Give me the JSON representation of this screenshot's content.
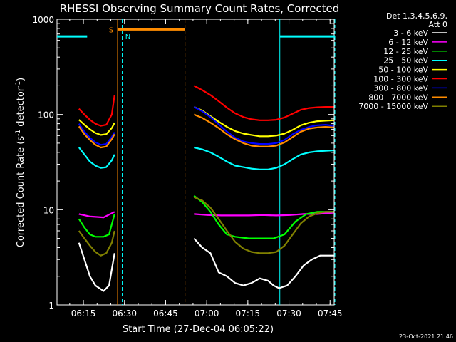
{
  "chart_data": {
    "type": "line",
    "title": "RHESSI Observing Summary Count Rates, Corrected",
    "xlabel": "Start Time (27-Dec-04 06:05:22)",
    "ylabel_main": "Corrected Count Rate (s",
    "ylabel_sup1": "-1",
    "ylabel_mid": " detector",
    "ylabel_sup2": "-1",
    "ylabel_end": ")",
    "yscale": "log",
    "xlim": [
      "06:05:22",
      "07:46:30"
    ],
    "ylim": [
      1,
      1000
    ],
    "x_ticks": [
      "06:15",
      "06:30",
      "06:45",
      "07:00",
      "07:15",
      "07:30",
      "07:45"
    ],
    "x_tick_minutes": [
      15,
      30,
      45,
      60,
      75,
      90,
      105
    ],
    "y_ticks": [
      "1",
      "10",
      "100",
      "1000"
    ],
    "y_tick_values": [
      1,
      10,
      100,
      1000
    ],
    "legend": {
      "header1": "Det 1,3,4,5,6,9,",
      "header2": "Att 0",
      "position": "right"
    },
    "series": [
      {
        "name": "3 - 6 keV",
        "color": "#000000",
        "segments": [
          [
            [
              8,
              4.5
            ],
            [
              10,
              3.0
            ],
            [
              12,
              2.0
            ],
            [
              14,
              1.6
            ],
            [
              17,
              1.4
            ],
            [
              19,
              1.6
            ],
            [
              21,
              3.5
            ]
          ],
          [
            [
              50,
              5
            ],
            [
              53,
              4
            ],
            [
              56,
              3.5
            ],
            [
              59,
              2.2
            ],
            [
              62,
              2.0
            ],
            [
              65,
              1.7
            ],
            [
              68,
              1.6
            ],
            [
              71,
              1.7
            ],
            [
              74,
              1.9
            ],
            [
              77,
              1.8
            ],
            [
              79,
              1.6
            ],
            [
              81,
              1.5
            ],
            [
              84,
              1.6
            ],
            [
              87,
              2.0
            ],
            [
              90,
              2.6
            ],
            [
              93,
              3.0
            ],
            [
              96,
              3.3
            ],
            [
              99,
              3.3
            ],
            [
              101,
              3.3
            ]
          ]
        ]
      },
      {
        "name": "6 - 12 keV",
        "color": "#ff00ff",
        "segments": [
          [
            [
              8,
              9.0
            ],
            [
              12,
              8.5
            ],
            [
              17,
              8.3
            ],
            [
              21,
              9.5
            ]
          ],
          [
            [
              50,
              9.0
            ],
            [
              55,
              8.8
            ],
            [
              60,
              8.7
            ],
            [
              65,
              8.7
            ],
            [
              70,
              8.7
            ],
            [
              75,
              8.8
            ],
            [
              80,
              8.7
            ],
            [
              85,
              8.8
            ],
            [
              90,
              9.0
            ],
            [
              95,
              9.0
            ],
            [
              101,
              9.3
            ]
          ]
        ]
      },
      {
        "name": "12 - 25 keV",
        "color": "#00ff00",
        "segments": [
          [
            [
              8,
              8.0
            ],
            [
              10,
              6.5
            ],
            [
              12,
              5.5
            ],
            [
              14,
              5.2
            ],
            [
              17,
              5.2
            ],
            [
              19,
              5.5
            ],
            [
              21,
              9.0
            ]
          ],
          [
            [
              50,
              14
            ],
            [
              53,
              12
            ],
            [
              56,
              9.5
            ],
            [
              59,
              7.0
            ],
            [
              62,
              5.5
            ],
            [
              65,
              5.2
            ],
            [
              70,
              5.0
            ],
            [
              75,
              5.0
            ],
            [
              79,
              5.0
            ],
            [
              83,
              5.5
            ],
            [
              87,
              7.5
            ],
            [
              91,
              9.0
            ],
            [
              95,
              9.5
            ],
            [
              101,
              9.5
            ]
          ]
        ]
      },
      {
        "name": "25 - 50 keV",
        "color": "#00ffff",
        "segments": [
          [
            [
              8,
              45
            ],
            [
              10,
              38
            ],
            [
              12,
              32
            ],
            [
              14,
              29
            ],
            [
              16,
              27.5
            ],
            [
              18,
              28
            ],
            [
              20,
              33
            ],
            [
              21,
              38
            ]
          ],
          [
            [
              50,
              45
            ],
            [
              53,
              43
            ],
            [
              56,
              40
            ],
            [
              59,
              36
            ],
            [
              62,
              32
            ],
            [
              65,
              29
            ],
            [
              68,
              28
            ],
            [
              71,
              27
            ],
            [
              74,
              26.5
            ],
            [
              77,
              26.5
            ],
            [
              80,
              27.5
            ],
            [
              83,
              30
            ],
            [
              86,
              34
            ],
            [
              89,
              38
            ],
            [
              92,
              40
            ],
            [
              95,
              41
            ],
            [
              98,
              41.5
            ],
            [
              101,
              42
            ]
          ]
        ]
      },
      {
        "name": "50 - 100 keV",
        "color": "#ffff00",
        "segments": [
          [
            [
              8,
              88
            ],
            [
              10,
              78
            ],
            [
              12,
              70
            ],
            [
              14,
              64
            ],
            [
              16,
              61
            ],
            [
              18,
              62
            ],
            [
              20,
              72
            ],
            [
              21,
              82
            ]
          ],
          [
            [
              50,
              120
            ],
            [
              53,
              110
            ],
            [
              56,
              96
            ],
            [
              59,
              84
            ],
            [
              62,
              74
            ],
            [
              65,
              67
            ],
            [
              68,
              63
            ],
            [
              71,
              61
            ],
            [
              74,
              59
            ],
            [
              77,
              59
            ],
            [
              80,
              60
            ],
            [
              83,
              63
            ],
            [
              86,
              69
            ],
            [
              89,
              77
            ],
            [
              92,
              82
            ],
            [
              95,
              85
            ],
            [
              98,
              86
            ],
            [
              101,
              87
            ]
          ]
        ]
      },
      {
        "name": "100 - 300 keV",
        "color": "#ff0000",
        "segments": [
          [
            [
              8,
              115
            ],
            [
              10,
              100
            ],
            [
              12,
              88
            ],
            [
              14,
              80
            ],
            [
              16,
              76
            ],
            [
              18,
              78
            ],
            [
              20,
              100
            ],
            [
              21,
              160
            ]
          ],
          [
            [
              50,
              200
            ],
            [
              53,
              180
            ],
            [
              56,
              160
            ],
            [
              59,
              138
            ],
            [
              62,
              118
            ],
            [
              65,
              103
            ],
            [
              68,
              94
            ],
            [
              71,
              89
            ],
            [
              74,
              87
            ],
            [
              77,
              87
            ],
            [
              80,
              88
            ],
            [
              83,
              93
            ],
            [
              86,
              102
            ],
            [
              89,
              112
            ],
            [
              92,
              117
            ],
            [
              95,
              119
            ],
            [
              98,
              120
            ],
            [
              101,
              120
            ]
          ]
        ]
      },
      {
        "name": "300 - 800 keV",
        "color": "#0000ff",
        "segments": [
          [
            [
              8,
              80
            ],
            [
              10,
              66
            ],
            [
              12,
              57
            ],
            [
              14,
              51
            ],
            [
              16,
              48
            ],
            [
              18,
              49
            ],
            [
              20,
              58
            ],
            [
              21,
              65
            ]
          ],
          [
            [
              50,
              120
            ],
            [
              53,
              108
            ],
            [
              56,
              94
            ],
            [
              59,
              79
            ],
            [
              62,
              66
            ],
            [
              65,
              57
            ],
            [
              68,
              52
            ],
            [
              71,
              50
            ],
            [
              74,
              49
            ],
            [
              77,
              49
            ],
            [
              80,
              50
            ],
            [
              83,
              54
            ],
            [
              86,
              62
            ],
            [
              89,
              69
            ],
            [
              92,
              74
            ],
            [
              95,
              77
            ],
            [
              98,
              78
            ],
            [
              101,
              76
            ]
          ]
        ]
      },
      {
        "name": "800 - 7000 keV",
        "color": "#ff8c00",
        "segments": [
          [
            [
              8,
              75
            ],
            [
              10,
              62
            ],
            [
              12,
              54
            ],
            [
              14,
              48
            ],
            [
              16,
              45
            ],
            [
              18,
              46
            ],
            [
              20,
              55
            ],
            [
              21,
              62
            ]
          ],
          [
            [
              50,
              100
            ],
            [
              53,
              92
            ],
            [
              56,
              82
            ],
            [
              59,
              72
            ],
            [
              62,
              62
            ],
            [
              65,
              55
            ],
            [
              68,
              50
            ],
            [
              71,
              47
            ],
            [
              74,
              46
            ],
            [
              77,
              46
            ],
            [
              80,
              47
            ],
            [
              83,
              51
            ],
            [
              86,
              58
            ],
            [
              89,
              66
            ],
            [
              92,
              71
            ],
            [
              95,
              73
            ],
            [
              98,
              74
            ],
            [
              101,
              73
            ]
          ]
        ]
      },
      {
        "name": "7000 - 15000 keV",
        "color": "#808000",
        "segments": [
          [
            [
              8,
              6.0
            ],
            [
              10,
              5.0
            ],
            [
              12,
              4.2
            ],
            [
              14,
              3.6
            ],
            [
              16,
              3.3
            ],
            [
              18,
              3.5
            ],
            [
              20,
              4.5
            ],
            [
              21,
              6.0
            ]
          ],
          [
            [
              50,
              13.5
            ],
            [
              53,
              12.5
            ],
            [
              56,
              10.5
            ],
            [
              59,
              8.0
            ],
            [
              62,
              6.0
            ],
            [
              65,
              4.6
            ],
            [
              68,
              3.9
            ],
            [
              71,
              3.6
            ],
            [
              74,
              3.5
            ],
            [
              77,
              3.5
            ],
            [
              80,
              3.6
            ],
            [
              83,
              4.2
            ],
            [
              86,
              5.5
            ],
            [
              89,
              7.2
            ],
            [
              92,
              8.5
            ],
            [
              95,
              9.2
            ],
            [
              98,
              9.5
            ],
            [
              101,
              9.5
            ]
          ]
        ]
      }
    ],
    "flag_bars": [
      {
        "label": "",
        "color": "#00ffff",
        "x0": 0,
        "x1": 11,
        "y": 660
      },
      {
        "label": "",
        "color": "#00ffff",
        "x0": 81.3,
        "x1": 101.4,
        "y": 660
      },
      {
        "label": "S",
        "color": "#ff8c00",
        "x0": 22.1,
        "x1": 46.7,
        "y": 780
      }
    ],
    "flag_labels": {
      "s_label": "S",
      "n_label": "N"
    },
    "vlines": [
      {
        "x": 22.1,
        "color": "#ff8c00",
        "dash": false
      },
      {
        "x": 23.8,
        "color": "#00ffff",
        "dash": true
      },
      {
        "x": 46.7,
        "color": "#ff8c00",
        "dash": true
      },
      {
        "x": 81.3,
        "color": "#00ffff",
        "dash": false
      },
      {
        "x": 101.4,
        "color": "#00ffff",
        "dash": true
      }
    ],
    "timestamp": "23-Oct-2021 21:46"
  }
}
